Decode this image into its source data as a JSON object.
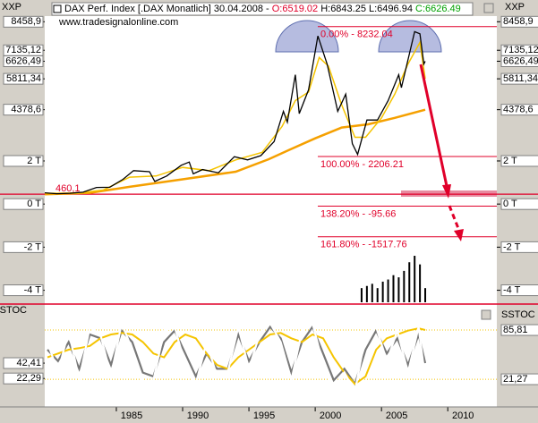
{
  "header": {
    "name": "DAX Perf. Index [.DAX  Monatlich] 30.04.2008 -",
    "open": "O:6519.02",
    "high_low": "H:6843.25 L:6496.94",
    "close": "C:6626.49"
  },
  "watermark": "www.tradesignalonline.com",
  "chart_data": [
    {
      "type": "line",
      "axis_title": "XXP",
      "xlim": [
        1979.6,
        2013.7
      ],
      "ylim": [
        -4640,
        8721
      ],
      "yticks": [
        {
          "value": 8458.9,
          "label": "8458,9"
        },
        {
          "value": 7135.12,
          "label": "7135,12"
        },
        {
          "value": 6626.49,
          "label": "6626,49"
        },
        {
          "value": 5811.34,
          "label": "5811,34"
        },
        {
          "value": 4378.6,
          "label": "4378,6"
        },
        {
          "value": 2000,
          "label": "2 T"
        },
        {
          "value": 0,
          "label": "0 T"
        },
        {
          "value": -2000,
          "label": "-2 T"
        },
        {
          "value": -4000,
          "label": "-4 T"
        }
      ],
      "series": [
        {
          "color": "#000000",
          "x": [
            1979.6,
            1980.5,
            1981.5,
            1982.5,
            1983.5,
            1984.5,
            1985.5,
            1986.3,
            1987.5,
            1987.9,
            1988.8,
            1989.9,
            1990.5,
            1990.8,
            1991.5,
            1992.7,
            1993.9,
            1994.9,
            1995.9,
            1996.9,
            1997.6,
            1997.9,
            1998.5,
            1998.8,
            1999.5,
            2000.2,
            2000.9,
            2001.7,
            2002.3,
            2002.8,
            2003.2,
            2003.9,
            2004.7,
            2005.5,
            2006.3,
            2006.5,
            2007.5,
            2007.9,
            2008.2,
            2008.3
          ],
          "values": [
            520,
            480,
            500,
            550,
            770,
            780,
            1150,
            1550,
            1500,
            1050,
            1300,
            1800,
            1950,
            1400,
            1600,
            1450,
            2200,
            2050,
            2250,
            2900,
            4300,
            3800,
            6000,
            4200,
            5300,
            7800,
            6500,
            4300,
            5100,
            2800,
            2300,
            3900,
            3900,
            4800,
            6000,
            5400,
            8000,
            7900,
            6500,
            6626.49
          ]
        },
        {
          "color": "#f5c400",
          "x": [
            1979.6,
            1982,
            1984,
            1986,
            1988,
            1990,
            1992,
            1994,
            1996,
            1997.5,
            1998.5,
            1999.5,
            2000.3,
            2001,
            2002,
            2003,
            2003.8,
            2005,
            2006,
            2007,
            2007.9,
            2008.3
          ],
          "values": [
            500,
            500,
            650,
            1250,
            1300,
            1700,
            1550,
            2050,
            2400,
            3600,
            4800,
            5200,
            6800,
            6400,
            4600,
            3100,
            3100,
            4000,
            5100,
            6500,
            7500,
            5811.34
          ]
        },
        {
          "color": "#f5a000",
          "x": [
            1979.6,
            1983,
            1986,
            1990,
            1994,
            1996.5,
            1998,
            2000,
            2002,
            2004,
            2006,
            2008.3
          ],
          "values": [
            450,
            520,
            800,
            1150,
            1500,
            2080,
            2500,
            3050,
            3550,
            3700,
            4000,
            4378.6
          ]
        }
      ],
      "volume": {
        "color": "#000000",
        "x": [
          2003.5,
          2003.9,
          2004.3,
          2004.7,
          2005.1,
          2005.5,
          2005.9,
          2006.3,
          2006.7,
          2007.1,
          2007.5,
          2007.9,
          2008.3
        ],
        "values": [
          -3900,
          -3800,
          -3700,
          -3900,
          -3600,
          -3500,
          -3300,
          -3400,
          -3100,
          -2700,
          -2400,
          -2800,
          -3900
        ]
      },
      "base_level": {
        "label": "460,1",
        "value": 460.1
      },
      "levels": [
        {
          "label": "0.00% - 8232.04",
          "value": 8232.04
        },
        {
          "label": "100.00% - 2206.21",
          "value": 2206.21
        },
        {
          "label": "138.20% - -95.66",
          "value": -95.66
        },
        {
          "label": "161.80% - -1517.76",
          "value": -1517.76
        }
      ],
      "level_color": "#e0002a"
    },
    {
      "type": "line",
      "axis_title": "SSTOC",
      "xlim": [
        1979.6,
        2013.7
      ],
      "ylim": [
        -15,
        114
      ],
      "xticks": [
        1985,
        1990,
        1995,
        2000,
        2005,
        2010
      ],
      "yticks": [
        {
          "value": 42.41,
          "label": "42,41"
        },
        {
          "value": 22.29,
          "label": "22,29"
        }
      ],
      "yticks_right": [
        {
          "value": 85.81,
          "label": "85,81"
        },
        {
          "value": 21.27,
          "label": "21,27"
        }
      ],
      "x": [
        1979.8,
        1980.6,
        1981.4,
        1982.2,
        1983,
        1983.8,
        1984.6,
        1985.4,
        1986.2,
        1987,
        1987.8,
        1988.6,
        1989.4,
        1990.2,
        1991,
        1991.8,
        1992.6,
        1993.4,
        1994.2,
        1995,
        1995.8,
        1996.6,
        1997.4,
        1998.2,
        1999,
        1999.8,
        2000.6,
        2001.4,
        2002.2,
        2003,
        2003.8,
        2004.6,
        2005.4,
        2006.2,
        2007,
        2007.8,
        2008.3
      ],
      "series": [
        {
          "color": "#777777",
          "values": [
            60,
            45,
            70,
            35,
            80,
            75,
            40,
            85,
            70,
            30,
            25,
            70,
            85,
            55,
            25,
            55,
            35,
            35,
            80,
            45,
            70,
            90,
            75,
            30,
            70,
            90,
            55,
            20,
            35,
            15,
            60,
            85,
            55,
            75,
            40,
            80,
            42.41
          ]
        },
        {
          "color": "#f5c400",
          "values": [
            50,
            55,
            60,
            62,
            65,
            75,
            80,
            82,
            80,
            70,
            55,
            50,
            70,
            80,
            75,
            55,
            40,
            35,
            50,
            60,
            70,
            80,
            82,
            75,
            70,
            80,
            75,
            50,
            30,
            15,
            25,
            60,
            75,
            80,
            85,
            88,
            85.81
          ]
        },
        {
          "color": "#ffffff",
          "values": [
            70,
            30,
            85,
            20,
            90,
            80,
            25,
            95,
            60,
            15,
            20,
            85,
            90,
            40,
            15,
            70,
            25,
            30,
            90,
            35,
            80,
            95,
            70,
            20,
            85,
            95,
            40,
            10,
            30,
            5,
            80,
            90,
            45,
            85,
            30,
            90,
            21.27
          ]
        }
      ]
    }
  ]
}
